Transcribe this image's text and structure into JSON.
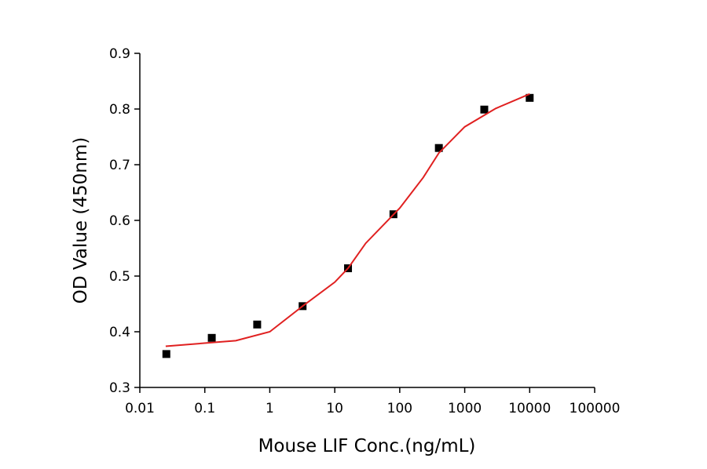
{
  "chart_data": {
    "type": "scatter",
    "x_label": "Mouse LIF Conc.(ng/mL)",
    "y_label": "OD Value (450nm)",
    "xscale": "log",
    "xlim": [
      0.01,
      100000
    ],
    "xticks": [
      0.01,
      0.1,
      1,
      10,
      100,
      1000,
      10000,
      100000
    ],
    "ylim": [
      0.3,
      0.9
    ],
    "yticks": [
      0.3,
      0.4,
      0.5,
      0.6,
      0.7,
      0.8,
      0.9
    ],
    "series": [
      {
        "color": "#000000",
        "marker": "square",
        "x": [
          0.0256,
          0.128,
          0.64,
          3.2,
          16,
          80,
          400,
          2000,
          10000
        ],
        "values": [
          0.36,
          0.389,
          0.413,
          0.446,
          0.514,
          0.611,
          0.73,
          0.799,
          0.82
        ]
      },
      {
        "color": "#e02020",
        "marker": "line",
        "x": [
          0.025,
          0.3,
          1,
          3.2,
          10,
          16,
          30,
          100,
          230,
          400,
          1000,
          3000,
          10000
        ],
        "values": [
          0.374,
          0.384,
          0.4,
          0.446,
          0.489,
          0.514,
          0.559,
          0.622,
          0.677,
          0.721,
          0.768,
          0.801,
          0.827
        ]
      }
    ]
  }
}
